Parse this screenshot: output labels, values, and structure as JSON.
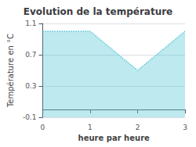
{
  "chart_data": {
    "type": "line",
    "title": "Evolution de la température",
    "xlabel": "heure par heure",
    "ylabel": "Température en °C",
    "x": [
      0,
      1,
      2,
      3
    ],
    "values": [
      1.0,
      1.0,
      0.5,
      1.0
    ],
    "xlim": [
      0,
      3
    ],
    "ylim": [
      -0.1,
      1.1
    ],
    "xticks": [
      0,
      1,
      2,
      3
    ],
    "yticks": [
      -0.1,
      0.3,
      0.7,
      1.1
    ],
    "color": "#5bc8d8",
    "line_style": "dotted",
    "grid": true
  }
}
